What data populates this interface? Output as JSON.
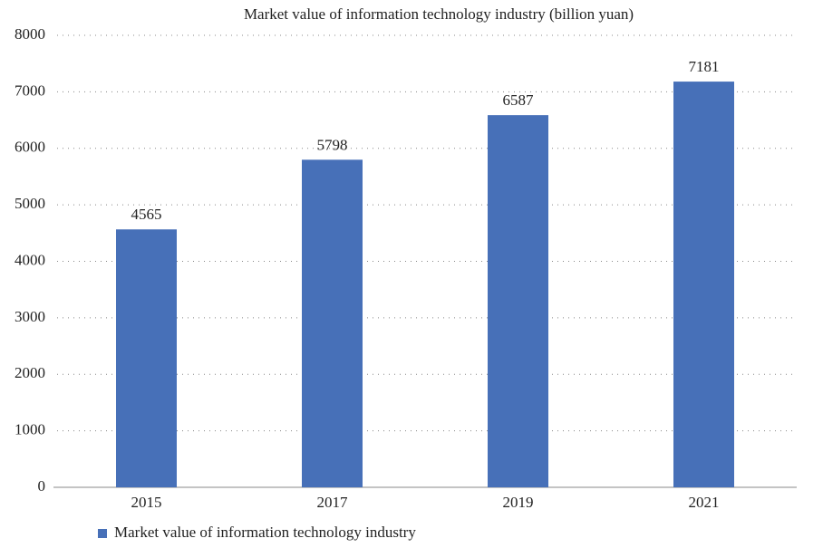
{
  "chart_data": {
    "type": "bar",
    "title": "Market value of information technology industry (billion yuan)",
    "categories": [
      "2015",
      "2017",
      "2019",
      "2021"
    ],
    "series": [
      {
        "name": "Market value of information technology industry",
        "color": "#4770b8",
        "values": [
          4565,
          5798,
          6587,
          7181
        ]
      }
    ],
    "ylim": [
      0,
      8000
    ],
    "yticks": [
      0,
      1000,
      2000,
      3000,
      4000,
      5000,
      6000,
      7000,
      8000
    ],
    "grid": true,
    "legend": "bottom-left"
  }
}
